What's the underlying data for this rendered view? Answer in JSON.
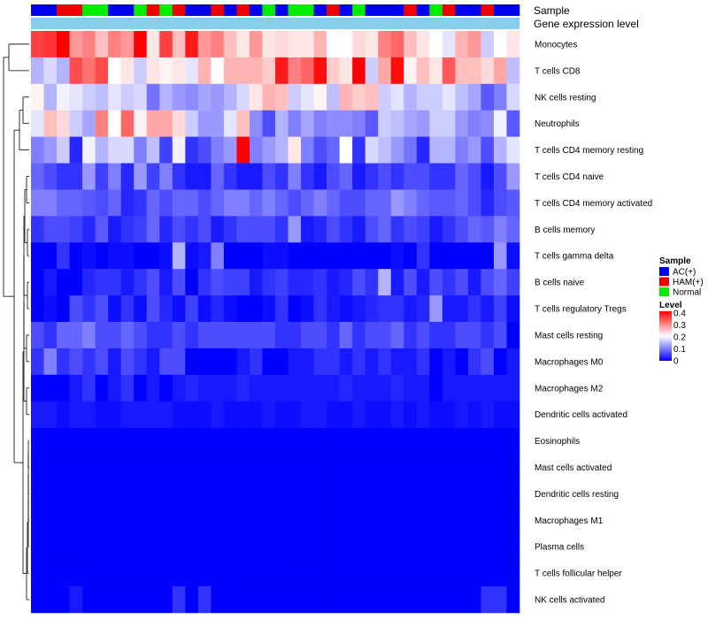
{
  "chart_data": {
    "type": "heatmap",
    "annotation_labels": {
      "sample": "Sample",
      "gene": "Gene expression level"
    },
    "rows": [
      "Monocytes",
      "T cells CD8",
      "NK cells resting",
      "Neutrophils",
      "T cells CD4 memory resting",
      "T cells CD4 naive",
      "T cells CD4 memory activated",
      "B cells memory",
      "T cells gamma delta",
      "B cells naive",
      "T cells regulatory  Tregs",
      "Mast cells resting",
      "Macrophages M0",
      "Macrophages M2",
      "Dendritic cells activated",
      "Eosinophils",
      "Mast cells activated",
      "Dendritic cells resting",
      "Macrophages M1",
      "Plasma cells",
      "T cells follicular helper",
      "NK cells activated"
    ],
    "sample_groups": [
      "AC",
      "AC",
      "HAM",
      "HAM",
      "Normal",
      "Normal",
      "AC",
      "AC",
      "Normal",
      "HAM",
      "Normal",
      "HAM",
      "AC",
      "AC",
      "HAM",
      "AC",
      "HAM",
      "AC",
      "Normal",
      "AC",
      "Normal",
      "Normal",
      "AC",
      "HAM",
      "AC",
      "Normal",
      "AC",
      "AC",
      "AC",
      "HAM",
      "AC",
      "Normal",
      "HAM",
      "AC",
      "AC",
      "HAM",
      "AC",
      "AC"
    ],
    "sample_legend": [
      {
        "key": "AC",
        "label": "AC(+)",
        "color": "#0000ee"
      },
      {
        "key": "HAM",
        "label": "HAM(+)",
        "color": "#ee0000"
      },
      {
        "key": "Normal",
        "label": "Normal",
        "color": "#00ee00"
      }
    ],
    "legend_titles": {
      "sample": "Sample",
      "level": "Level"
    },
    "level_ticks": [
      "0.4",
      "0.3",
      "0.2",
      "0.1",
      "0"
    ],
    "scale": {
      "min": 0,
      "max": 0.4,
      "low": "#0000ff",
      "mid": "#ffffff",
      "high": "#ff0000"
    },
    "values": [
      [
        0.35,
        0.36,
        0.4,
        0.28,
        0.3,
        0.25,
        0.3,
        0.28,
        0.4,
        0.22,
        0.35,
        0.25,
        0.38,
        0.28,
        0.3,
        0.25,
        0.22,
        0.28,
        0.22,
        0.23,
        0.22,
        0.22,
        0.26,
        0.2,
        0.2,
        0.23,
        0.22,
        0.3,
        0.32,
        0.25,
        0.22,
        0.2,
        0.18,
        0.26,
        0.28,
        0.16,
        0.2,
        0.22
      ],
      [
        0.14,
        0.17,
        0.14,
        0.34,
        0.31,
        0.34,
        0.2,
        0.22,
        0.16,
        0.22,
        0.21,
        0.22,
        0.18,
        0.26,
        0.2,
        0.26,
        0.26,
        0.26,
        0.24,
        0.38,
        0.3,
        0.32,
        0.39,
        0.24,
        0.22,
        0.4,
        0.16,
        0.27,
        0.39,
        0.21,
        0.25,
        0.22,
        0.33,
        0.25,
        0.25,
        0.23,
        0.27,
        0.15
      ],
      [
        0.21,
        0.14,
        0.19,
        0.18,
        0.16,
        0.15,
        0.18,
        0.16,
        0.17,
        0.09,
        0.14,
        0.12,
        0.11,
        0.13,
        0.12,
        0.14,
        0.17,
        0.22,
        0.26,
        0.25,
        0.16,
        0.18,
        0.21,
        0.15,
        0.26,
        0.24,
        0.25,
        0.16,
        0.18,
        0.14,
        0.16,
        0.16,
        0.18,
        0.15,
        0.13,
        0.07,
        0.1,
        0.17
      ],
      [
        0.18,
        0.25,
        0.23,
        0.16,
        0.13,
        0.3,
        0.2,
        0.32,
        0.21,
        0.27,
        0.27,
        0.23,
        0.16,
        0.12,
        0.12,
        0.18,
        0.25,
        0.11,
        0.06,
        0.14,
        0.1,
        0.13,
        0.1,
        0.11,
        0.11,
        0.1,
        0.07,
        0.16,
        0.15,
        0.13,
        0.12,
        0.16,
        0.16,
        0.12,
        0.1,
        0.11,
        0.19,
        0.07
      ],
      [
        0.1,
        0.12,
        0.16,
        0.03,
        0.19,
        0.14,
        0.17,
        0.17,
        0.1,
        0.15,
        0.05,
        0.19,
        0.04,
        0.06,
        0.1,
        0.12,
        0.4,
        0.1,
        0.12,
        0.14,
        0.22,
        0.1,
        0.06,
        0.08,
        0.2,
        0.04,
        0.17,
        0.15,
        0.12,
        0.09,
        0.03,
        0.14,
        0.14,
        0.1,
        0.12,
        0.06,
        0.14,
        0.18
      ],
      [
        0.08,
        0.06,
        0.04,
        0.04,
        0.12,
        0.05,
        0.1,
        0.03,
        0.12,
        0.05,
        0.1,
        0.04,
        0.02,
        0.02,
        0.08,
        0.04,
        0.02,
        0.02,
        0.06,
        0.04,
        0.1,
        0.04,
        0.02,
        0.06,
        0.08,
        0.02,
        0.04,
        0.06,
        0.04,
        0.06,
        0.06,
        0.04,
        0.04,
        0.08,
        0.06,
        0.02,
        0.06,
        0.12
      ],
      [
        0.1,
        0.1,
        0.08,
        0.08,
        0.07,
        0.06,
        0.08,
        0.03,
        0.04,
        0.08,
        0.06,
        0.08,
        0.08,
        0.06,
        0.08,
        0.1,
        0.1,
        0.08,
        0.1,
        0.08,
        0.06,
        0.08,
        0.1,
        0.08,
        0.06,
        0.06,
        0.08,
        0.08,
        0.12,
        0.1,
        0.08,
        0.07,
        0.07,
        0.08,
        0.06,
        0.03,
        0.06,
        0.07
      ],
      [
        0.04,
        0.06,
        0.06,
        0.05,
        0.03,
        0.07,
        0.02,
        0.04,
        0.05,
        0.08,
        0.03,
        0.06,
        0.04,
        0.06,
        0.02,
        0.04,
        0.06,
        0.06,
        0.06,
        0.04,
        0.12,
        0.02,
        0.03,
        0.06,
        0.04,
        0.02,
        0.06,
        0.08,
        0.04,
        0.06,
        0.05,
        0.02,
        0.04,
        0.06,
        0.08,
        0.07,
        0.1,
        0.08
      ],
      [
        0.0,
        0.0,
        0.04,
        0.0,
        0.01,
        0.0,
        0.01,
        0.01,
        0.0,
        0.0,
        0.01,
        0.14,
        0.01,
        0.02,
        0.1,
        0.0,
        0.0,
        0.0,
        0.01,
        0.01,
        0.0,
        0.0,
        0.0,
        0.0,
        0.0,
        0.0,
        0.0,
        0.0,
        0.01,
        0.0,
        0.04,
        0.0,
        0.0,
        0.0,
        0.0,
        0.0,
        0.12,
        0.01
      ],
      [
        0.0,
        0.02,
        0.0,
        0.0,
        0.03,
        0.04,
        0.04,
        0.02,
        0.04,
        0.06,
        0.02,
        0.06,
        0.0,
        0.04,
        0.06,
        0.05,
        0.05,
        0.02,
        0.04,
        0.05,
        0.03,
        0.03,
        0.04,
        0.02,
        0.03,
        0.06,
        0.04,
        0.14,
        0.02,
        0.06,
        0.02,
        0.06,
        0.04,
        0.06,
        0.02,
        0.06,
        0.08,
        0.05
      ],
      [
        0.0,
        0.01,
        0.0,
        0.06,
        0.04,
        0.06,
        0.01,
        0.04,
        0.01,
        0.06,
        0.03,
        0.01,
        0.05,
        0.01,
        0.03,
        0.01,
        0.0,
        0.0,
        0.01,
        0.04,
        0.0,
        0.01,
        0.04,
        0.02,
        0.01,
        0.02,
        0.03,
        0.04,
        0.04,
        0.02,
        0.03,
        0.12,
        0.02,
        0.02,
        0.04,
        0.02,
        0.05,
        0.01
      ],
      [
        0.06,
        0.04,
        0.08,
        0.08,
        0.1,
        0.06,
        0.06,
        0.08,
        0.06,
        0.04,
        0.04,
        0.06,
        0.04,
        0.06,
        0.06,
        0.06,
        0.06,
        0.06,
        0.06,
        0.04,
        0.04,
        0.06,
        0.06,
        0.04,
        0.08,
        0.04,
        0.06,
        0.06,
        0.08,
        0.04,
        0.06,
        0.04,
        0.04,
        0.06,
        0.06,
        0.04,
        0.06,
        0.0
      ],
      [
        0.04,
        0.1,
        0.04,
        0.06,
        0.04,
        0.06,
        0.02,
        0.06,
        0.04,
        0.02,
        0.06,
        0.06,
        0.0,
        0.0,
        0.0,
        0.0,
        0.02,
        0.04,
        0.0,
        0.0,
        0.02,
        0.02,
        0.04,
        0.04,
        0.02,
        0.04,
        0.02,
        0.04,
        0.02,
        0.02,
        0.04,
        0.0,
        0.02,
        0.0,
        0.04,
        0.06,
        0.0,
        0.02
      ],
      [
        0.0,
        0.0,
        0.0,
        0.02,
        0.04,
        0.0,
        0.02,
        0.04,
        0.0,
        0.02,
        0.0,
        0.02,
        0.03,
        0.02,
        0.02,
        0.02,
        0.03,
        0.02,
        0.02,
        0.02,
        0.02,
        0.02,
        0.02,
        0.02,
        0.03,
        0.02,
        0.02,
        0.02,
        0.03,
        0.02,
        0.02,
        0.0,
        0.02,
        0.02,
        0.02,
        0.02,
        0.02,
        0.02
      ],
      [
        0.02,
        0.02,
        0.01,
        0.02,
        0.02,
        0.01,
        0.01,
        0.02,
        0.02,
        0.02,
        0.02,
        0.01,
        0.01,
        0.01,
        0.02,
        0.01,
        0.01,
        0.01,
        0.02,
        0.01,
        0.01,
        0.02,
        0.02,
        0.01,
        0.01,
        0.02,
        0.01,
        0.01,
        0.02,
        0.01,
        0.02,
        0.01,
        0.01,
        0.02,
        0.01,
        0.02,
        0.01,
        0.01
      ],
      [
        0.0,
        0.0,
        0.0,
        0.0,
        0.0,
        0.0,
        0.0,
        0.0,
        0.0,
        0.0,
        0.0,
        0.0,
        0.0,
        0.0,
        0.0,
        0.0,
        0.0,
        0.0,
        0.0,
        0.0,
        0.0,
        0.0,
        0.0,
        0.0,
        0.0,
        0.0,
        0.0,
        0.0,
        0.0,
        0.0,
        0.0,
        0.0,
        0.0,
        0.0,
        0.0,
        0.0,
        0.0,
        0.0
      ],
      [
        0.0,
        0.0,
        0.0,
        0.0,
        0.0,
        0.0,
        0.0,
        0.0,
        0.0,
        0.0,
        0.0,
        0.0,
        0.0,
        0.0,
        0.0,
        0.0,
        0.0,
        0.0,
        0.0,
        0.0,
        0.0,
        0.0,
        0.0,
        0.0,
        0.0,
        0.0,
        0.0,
        0.0,
        0.0,
        0.0,
        0.0,
        0.0,
        0.0,
        0.0,
        0.0,
        0.0,
        0.0,
        0.0
      ],
      [
        0.0,
        0.0,
        0.0,
        0.0,
        0.0,
        0.0,
        0.0,
        0.0,
        0.0,
        0.0,
        0.0,
        0.0,
        0.0,
        0.0,
        0.0,
        0.0,
        0.0,
        0.0,
        0.0,
        0.0,
        0.0,
        0.0,
        0.0,
        0.0,
        0.0,
        0.0,
        0.0,
        0.0,
        0.0,
        0.0,
        0.0,
        0.0,
        0.0,
        0.0,
        0.0,
        0.0,
        0.0,
        0.0
      ],
      [
        0.0,
        0.0,
        0.0,
        0.0,
        0.0,
        0.0,
        0.0,
        0.0,
        0.0,
        0.0,
        0.0,
        0.0,
        0.0,
        0.0,
        0.0,
        0.0,
        0.0,
        0.0,
        0.0,
        0.0,
        0.0,
        0.0,
        0.0,
        0.0,
        0.0,
        0.0,
        0.0,
        0.0,
        0.0,
        0.0,
        0.0,
        0.0,
        0.0,
        0.0,
        0.0,
        0.0,
        0.0,
        0.0
      ],
      [
        0.0,
        0.0,
        0.0,
        0.0,
        0.0,
        0.0,
        0.0,
        0.0,
        0.0,
        0.0,
        0.0,
        0.0,
        0.0,
        0.0,
        0.0,
        0.0,
        0.0,
        0.0,
        0.0,
        0.0,
        0.0,
        0.0,
        0.0,
        0.0,
        0.0,
        0.0,
        0.0,
        0.0,
        0.0,
        0.0,
        0.0,
        0.0,
        0.0,
        0.0,
        0.0,
        0.0,
        0.0,
        0.0
      ],
      [
        0.0,
        0.0,
        0.0,
        0.0,
        0.0,
        0.0,
        0.0,
        0.0,
        0.0,
        0.0,
        0.0,
        0.0,
        0.0,
        0.0,
        0.0,
        0.0,
        0.0,
        0.0,
        0.0,
        0.0,
        0.0,
        0.0,
        0.0,
        0.0,
        0.0,
        0.0,
        0.0,
        0.0,
        0.0,
        0.0,
        0.0,
        0.0,
        0.0,
        0.0,
        0.0,
        0.0,
        0.0,
        0.0
      ],
      [
        0.0,
        0.0,
        0.0,
        0.02,
        0.0,
        0.0,
        0.0,
        0.0,
        0.0,
        0.0,
        0.0,
        0.04,
        0.0,
        0.04,
        0.0,
        0.0,
        0.0,
        0.0,
        0.0,
        0.0,
        0.0,
        0.0,
        0.0,
        0.0,
        0.0,
        0.0,
        0.0,
        0.0,
        0.0,
        0.0,
        0.0,
        0.0,
        0.0,
        0.0,
        0.0,
        0.04,
        0.04,
        0.0
      ]
    ]
  }
}
